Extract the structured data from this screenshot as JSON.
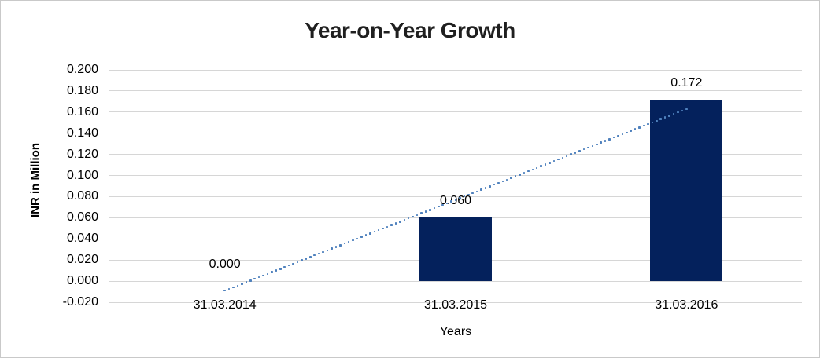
{
  "chart_data": {
    "type": "bar",
    "title": "Year-on-Year Growth",
    "xlabel": "Years",
    "ylabel": "INR in Million",
    "categories": [
      "31.03.2014",
      "31.03.2015",
      "31.03.2016"
    ],
    "values": [
      0.0,
      0.06,
      0.172
    ],
    "data_labels": [
      "0.000",
      "0.060",
      "0.172"
    ],
    "ylim": [
      -0.02,
      0.2
    ],
    "ytick_step": 0.02,
    "ytick_labels": [
      "0.200",
      "0.180",
      "0.160",
      "0.140",
      "0.120",
      "0.100",
      "0.080",
      "0.060",
      "0.040",
      "0.020",
      "0.000",
      "-0.020"
    ],
    "grid": true,
    "legend": "none",
    "trendline": {
      "type": "linear",
      "style": "dotted",
      "start_value": -0.009,
      "end_value": 0.163,
      "color": "#4f81bd"
    },
    "colors": {
      "bar": "#04215c",
      "gridline": "#d6d6d6",
      "title": "#1f1f1f",
      "text": "#000000"
    }
  }
}
